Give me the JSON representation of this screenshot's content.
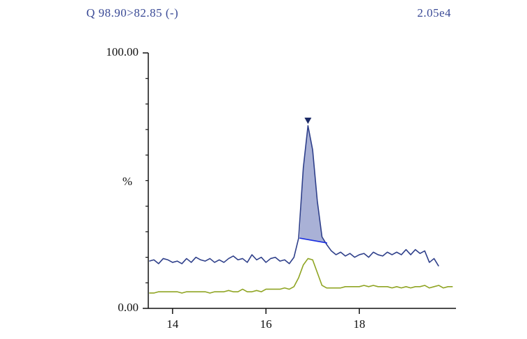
{
  "chart_data": {
    "type": "line",
    "title": "Q 98.90>82.85 (-)",
    "scale_label": "2.05e4",
    "ylabel": "%",
    "x": [
      13.5,
      13.6,
      13.7,
      13.8,
      13.9,
      14.0,
      14.1,
      14.2,
      14.3,
      14.4,
      14.5,
      14.6,
      14.7,
      14.8,
      14.9,
      15.0,
      15.1,
      15.2,
      15.3,
      15.4,
      15.5,
      15.6,
      15.7,
      15.8,
      15.9,
      16.0,
      16.1,
      16.2,
      16.3,
      16.4,
      16.5,
      16.6,
      16.7,
      16.8,
      16.9,
      17.0,
      17.1,
      17.2,
      17.3,
      17.4,
      17.5,
      17.6,
      17.7,
      17.8,
      17.9,
      18.0,
      18.1,
      18.2,
      18.3,
      18.4,
      18.5,
      18.6,
      18.7,
      18.8,
      18.9,
      19.0,
      19.1,
      19.2,
      19.3,
      19.4,
      19.5,
      19.6,
      19.7,
      19.8,
      19.9,
      20.0
    ],
    "series": [
      {
        "name": "trace",
        "color": "#2e3f8a",
        "values": [
          18.5,
          19,
          17.5,
          19.5,
          19,
          18,
          18.5,
          17.5,
          19.5,
          18,
          20,
          19,
          18.5,
          19.5,
          18,
          19,
          18,
          19.5,
          20.5,
          19,
          19.5,
          18,
          21,
          19,
          20,
          18,
          19.5,
          20,
          18.5,
          19,
          17.5,
          20,
          27.5,
          55,
          71.5,
          62,
          42,
          28,
          25,
          22.5,
          21,
          22,
          20.5,
          21.5,
          20,
          21,
          21.5,
          20,
          22,
          21,
          20.5,
          22,
          21,
          22,
          21,
          23,
          21,
          23,
          21.5,
          22.5,
          18,
          19.5,
          16.5,
          null,
          null,
          null
        ]
      },
      {
        "name": "reference",
        "color": "#8fa422",
        "values": [
          6,
          6,
          6.5,
          6.5,
          6.5,
          6.5,
          6.5,
          6,
          6.5,
          6.5,
          6.5,
          6.5,
          6.5,
          6,
          6.5,
          6.5,
          6.5,
          7,
          6.5,
          6.5,
          7.5,
          6.5,
          6.5,
          7,
          6.5,
          7.5,
          7.5,
          7.5,
          7.5,
          8,
          7.5,
          8.5,
          12,
          17,
          19.5,
          19,
          14,
          9,
          8,
          8,
          8,
          8,
          8.5,
          8.5,
          8.5,
          8.5,
          9,
          8.5,
          9,
          8.5,
          8.5,
          8.5,
          8,
          8.5,
          8,
          8.5,
          8,
          8.5,
          8.5,
          9,
          8,
          8.5,
          9,
          8,
          8.5,
          8.5
        ]
      }
    ],
    "integration_baseline": {
      "x": [
        16.72,
        17.31
      ],
      "y": [
        27.5,
        25.6
      ],
      "color": "#1a2ee0"
    },
    "peak_fill": "#a9b1d6",
    "peak_marker": {
      "x": 16.9,
      "y": 73.3,
      "color": "#1c2a66"
    },
    "xlim": [
      13.48,
      20.07
    ],
    "ylim": [
      0,
      100
    ],
    "xticks": [
      14,
      16,
      18
    ],
    "yticks": [
      {
        "value": 0,
        "label": "0.00"
      },
      {
        "value": 100,
        "label": "100.00"
      }
    ]
  }
}
